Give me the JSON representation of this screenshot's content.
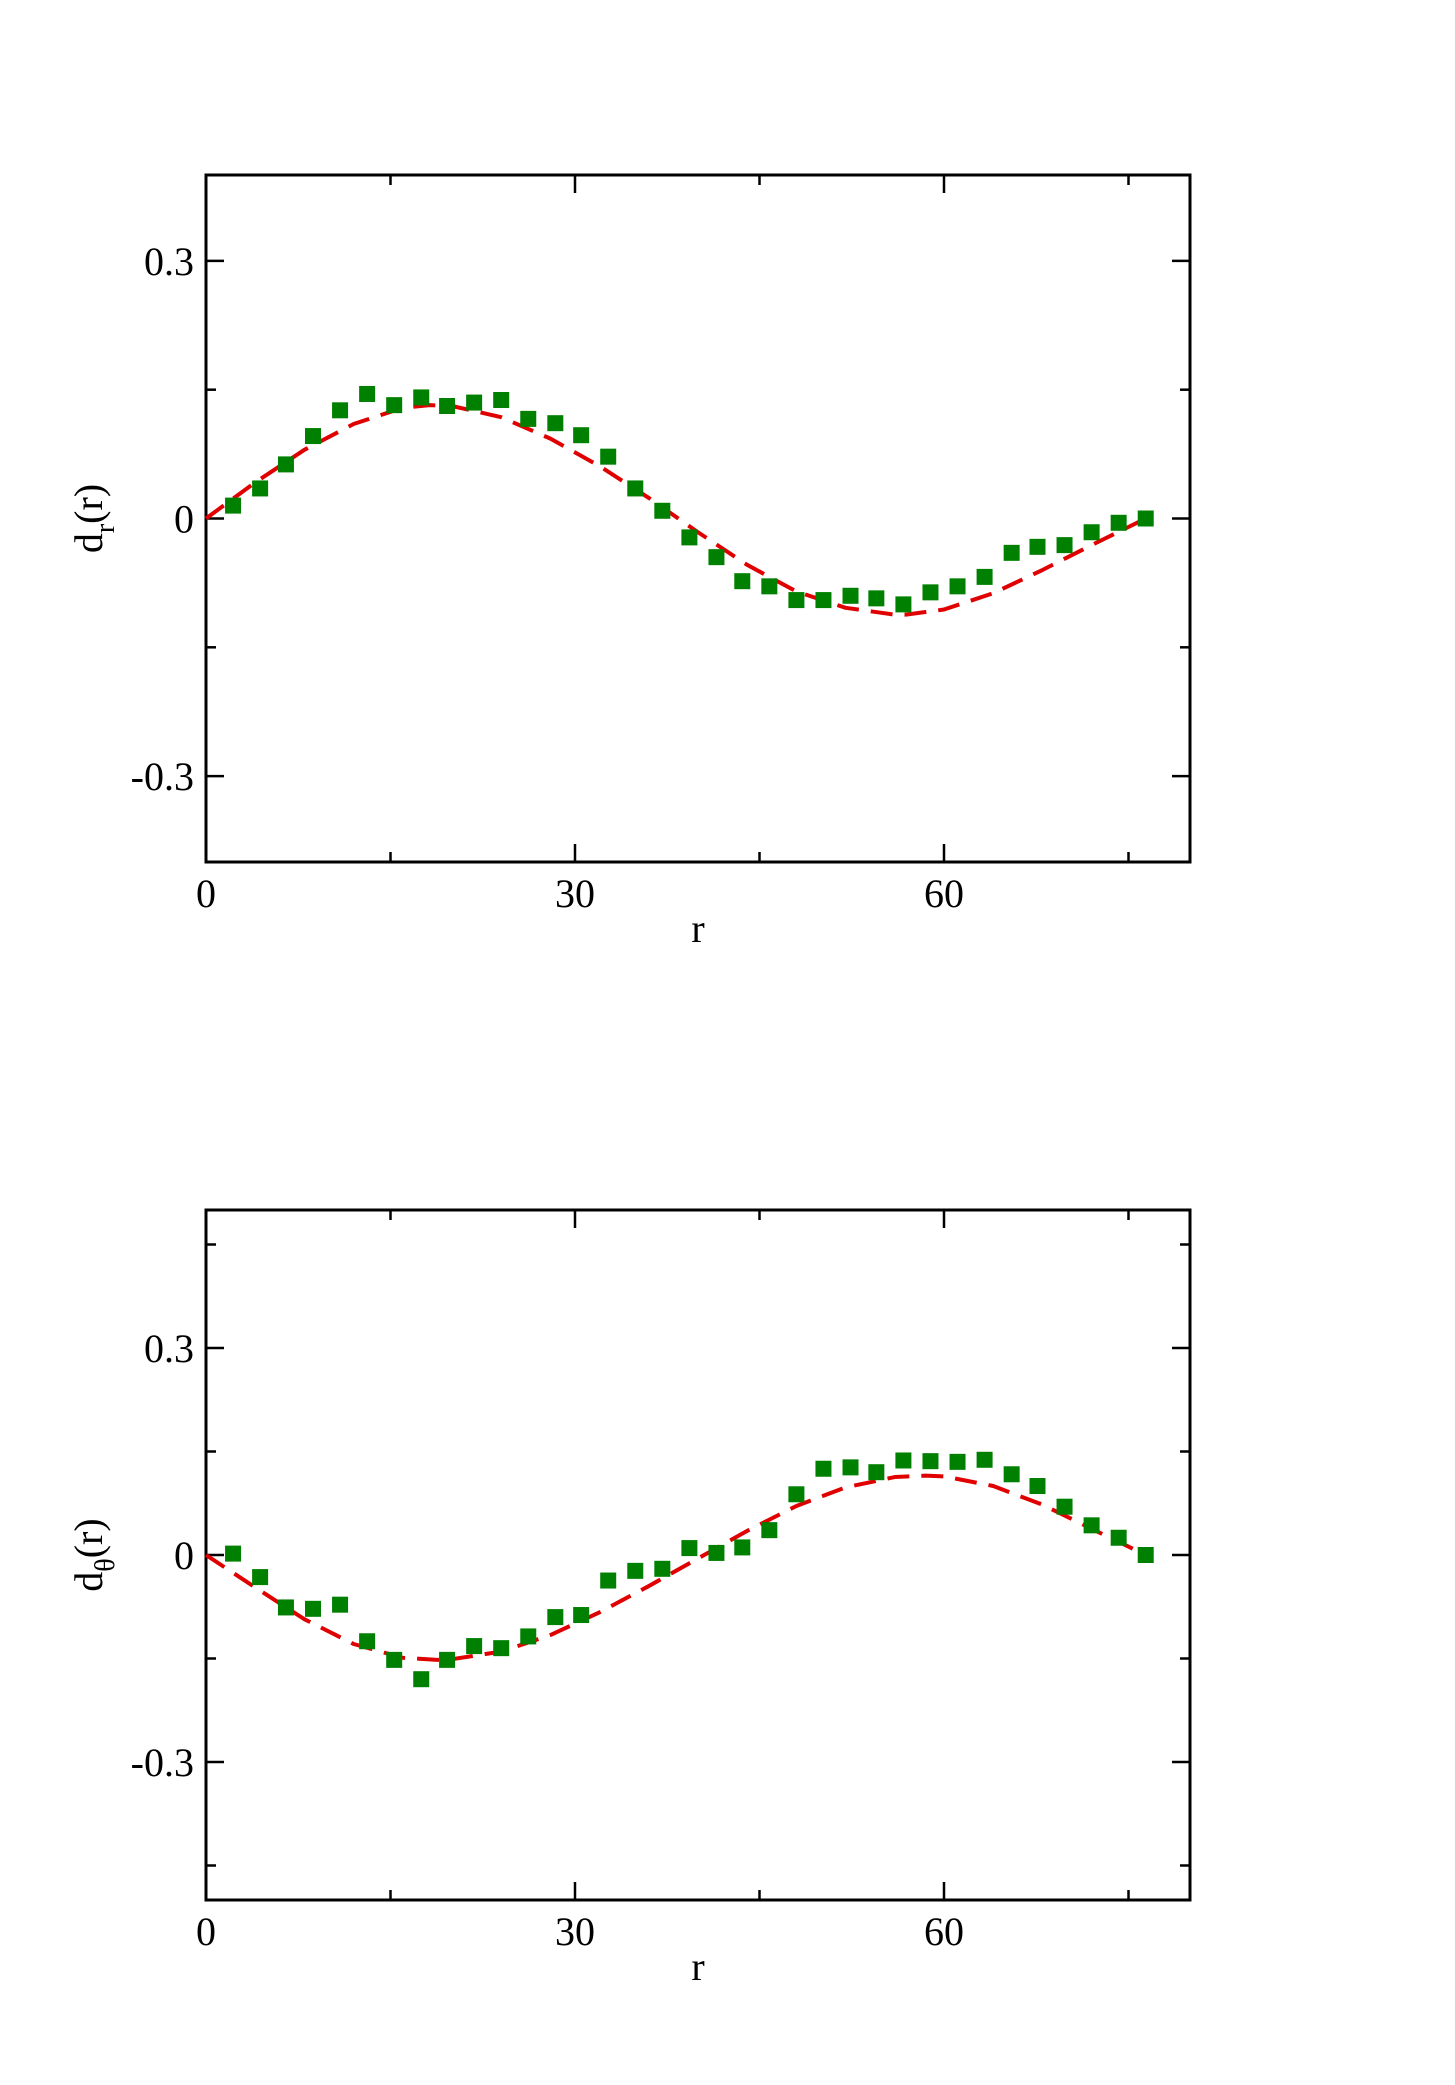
{
  "chart_data": [
    {
      "type": "scatter",
      "title": "",
      "xlabel": "r",
      "ylabel": "d_r(r)",
      "ylabel_main": "d",
      "ylabel_sub": "r",
      "ylabel_tail": "(r)",
      "xlim": [
        0,
        80
      ],
      "ylim": [
        -0.4,
        0.4
      ],
      "xticks": [
        0,
        30,
        60
      ],
      "xtick_labels": [
        "0",
        "30",
        "60"
      ],
      "yticks": [
        -0.3,
        0,
        0.3
      ],
      "ytick_labels": [
        "-0.3",
        "0",
        "0.3"
      ],
      "grid": false,
      "series": [
        {
          "marker": "square",
          "color": "#008000",
          "x": [
            2.2,
            4.4,
            6.5,
            8.7,
            10.9,
            13.1,
            15.3,
            17.5,
            19.6,
            21.8,
            24.0,
            26.2,
            28.4,
            30.5,
            32.7,
            34.9,
            37.1,
            39.3,
            41.5,
            43.6,
            45.8,
            48.0,
            50.2,
            52.4,
            54.5,
            56.7,
            58.9,
            61.1,
            63.3,
            65.5,
            67.6,
            69.8,
            72.0,
            74.2,
            76.4
          ],
          "y": [
            0.015,
            0.035,
            0.063,
            0.096,
            0.126,
            0.145,
            0.132,
            0.141,
            0.131,
            0.135,
            0.138,
            0.116,
            0.111,
            0.097,
            0.072,
            0.035,
            0.009,
            -0.022,
            -0.045,
            -0.073,
            -0.079,
            -0.095,
            -0.095,
            -0.09,
            -0.093,
            -0.1,
            -0.086,
            -0.079,
            -0.068,
            -0.04,
            -0.033,
            -0.031,
            -0.016,
            -0.005,
            0.0
          ]
        },
        {
          "line": "dashed",
          "color": "#e00000",
          "x": [
            0,
            4,
            8,
            12,
            16,
            18.2,
            20,
            24,
            28,
            32,
            36,
            40,
            44,
            48,
            52,
            56,
            56.9,
            60,
            64,
            68,
            72,
            76.4
          ],
          "y": [
            0.0,
            0.042,
            0.08,
            0.11,
            0.129,
            0.132,
            0.131,
            0.118,
            0.093,
            0.061,
            0.024,
            -0.016,
            -0.054,
            -0.085,
            -0.104,
            -0.112,
            -0.112,
            -0.106,
            -0.087,
            -0.06,
            -0.031,
            0.0
          ]
        }
      ]
    },
    {
      "type": "scatter",
      "title": "",
      "xlabel": "r",
      "ylabel": "d_θ(r)",
      "ylabel_main": "d",
      "ylabel_sub": "θ",
      "ylabel_tail": "(r)",
      "xlim": [
        0,
        80
      ],
      "ylim": [
        -0.5,
        0.5
      ],
      "xticks": [
        0,
        30,
        60
      ],
      "xtick_labels": [
        "0",
        "30",
        "60"
      ],
      "yticks": [
        -0.3,
        0,
        0.3
      ],
      "ytick_labels": [
        "-0.3",
        "0",
        "0.3"
      ],
      "grid": false,
      "series": [
        {
          "marker": "square",
          "color": "#008000",
          "x": [
            2.2,
            4.4,
            6.5,
            8.7,
            10.9,
            13.1,
            15.3,
            17.5,
            19.6,
            21.8,
            24.0,
            26.2,
            28.4,
            30.5,
            32.7,
            34.9,
            37.1,
            39.3,
            41.5,
            43.6,
            45.8,
            48.0,
            50.2,
            52.4,
            54.5,
            56.7,
            58.9,
            61.1,
            63.3,
            65.5,
            67.6,
            69.8,
            72.0,
            74.2,
            76.4
          ],
          "y": [
            0.002,
            -0.032,
            -0.076,
            -0.078,
            -0.072,
            -0.125,
            -0.152,
            -0.18,
            -0.152,
            -0.132,
            -0.135,
            -0.118,
            -0.09,
            -0.087,
            -0.037,
            -0.023,
            -0.02,
            0.01,
            0.003,
            0.011,
            0.036,
            0.088,
            0.125,
            0.127,
            0.12,
            0.137,
            0.136,
            0.135,
            0.138,
            0.117,
            0.1,
            0.07,
            0.043,
            0.025,
            0.0
          ]
        },
        {
          "line": "dashed",
          "color": "#e00000",
          "x": [
            0,
            4,
            8,
            12,
            16,
            18.8,
            20,
            24,
            28,
            32,
            36,
            40,
            44,
            48,
            52,
            56,
            58.5,
            60,
            64,
            68,
            72,
            76.4
          ],
          "y": [
            0.0,
            -0.047,
            -0.093,
            -0.129,
            -0.149,
            -0.152,
            -0.151,
            -0.14,
            -0.116,
            -0.083,
            -0.045,
            -0.005,
            0.035,
            0.071,
            0.098,
            0.113,
            0.115,
            0.114,
            0.1,
            0.073,
            0.038,
            0.0
          ]
        }
      ]
    }
  ]
}
